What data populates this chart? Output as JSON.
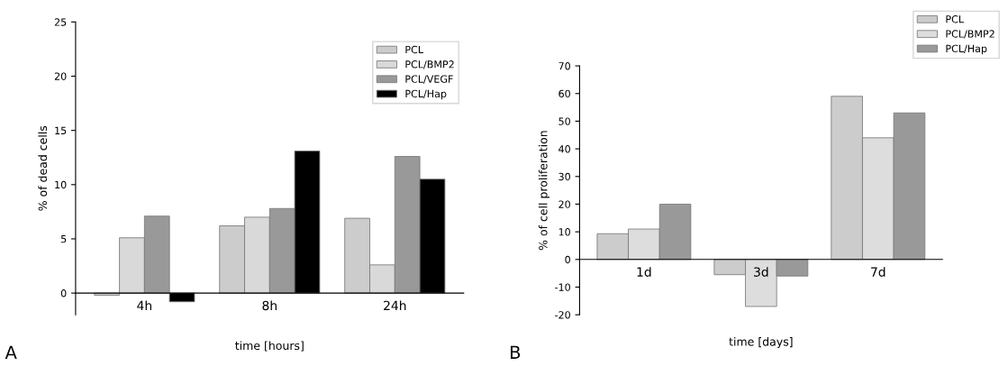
{
  "chart_data": [
    {
      "type": "bar",
      "xlabel": "time [hours]",
      "ylabel": "% of dead cells",
      "annotations": [
        "A"
      ],
      "categories": [
        "4h",
        "8h",
        "24h"
      ],
      "series": [
        {
          "name": "PCL",
          "color": "#cccccc",
          "values": [
            -0.2,
            6.2,
            6.9
          ]
        },
        {
          "name": "PCL/BMP2",
          "color": "#d9d9d9",
          "values": [
            5.1,
            7.0,
            2.6
          ]
        },
        {
          "name": "PCL/VEGF",
          "color": "#999999",
          "values": [
            7.1,
            7.8,
            12.6
          ]
        },
        {
          "name": "PCL/Hap",
          "color": "#000000",
          "values": [
            -0.8,
            13.1,
            10.5
          ]
        }
      ],
      "ylim": [
        -2,
        25
      ],
      "yticks": [
        0,
        5,
        10,
        15,
        20,
        25
      ],
      "grid": false,
      "legend": "top right"
    },
    {
      "type": "bar",
      "xlabel": "time [days]",
      "ylabel": "% of cell proliferation",
      "annotations": [
        "B"
      ],
      "categories": [
        "1d",
        "3d",
        "7d"
      ],
      "series": [
        {
          "name": "PCL",
          "color": "#cccccc",
          "values": [
            9.3,
            -5.5,
            59
          ]
        },
        {
          "name": "PCL/BMP2",
          "color": "#dddddd",
          "values": [
            11,
            -17,
            44
          ]
        },
        {
          "name": "PCL/Hap",
          "color": "#999999",
          "values": [
            20,
            -6,
            53
          ]
        }
      ],
      "ylim": [
        -20,
        70
      ],
      "yticks": [
        -20,
        -10,
        0,
        10,
        20,
        30,
        40,
        50,
        60,
        70
      ],
      "grid": false,
      "legend": "top right"
    }
  ]
}
